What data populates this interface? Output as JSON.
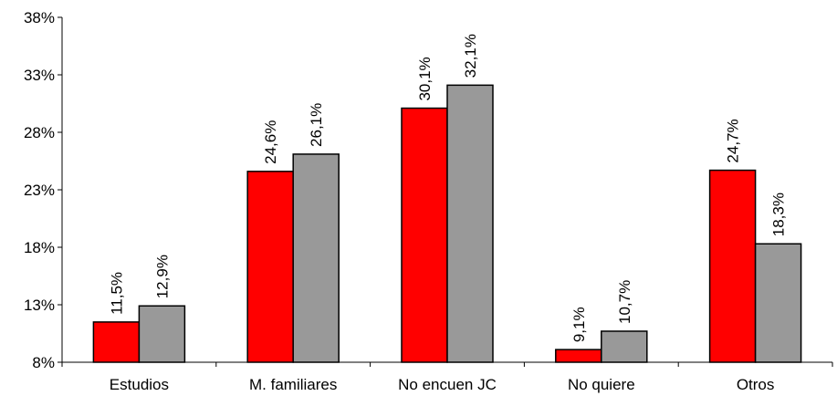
{
  "chart_data": {
    "type": "bar",
    "categories": [
      "Estudios",
      "M. familiares",
      "No encuen JC",
      "No quiere",
      "Otros"
    ],
    "series": [
      {
        "values": [
          11.5,
          24.6,
          30.1,
          9.1,
          24.7
        ],
        "labels": [
          "11,5%",
          "24,6%",
          "30,1%",
          "9,1%",
          "24,7%"
        ],
        "color": "#ff0000"
      },
      {
        "values": [
          12.9,
          26.1,
          32.1,
          10.7,
          18.3
        ],
        "labels": [
          "12,9%",
          "26,1%",
          "32,1%",
          "10,7%",
          "18,3%"
        ],
        "color": "#999999"
      }
    ],
    "ylim": [
      8,
      38
    ],
    "yticks": [
      8,
      13,
      18,
      23,
      28,
      33,
      38
    ],
    "ytick_labels": [
      "8%",
      "13%",
      "18%",
      "23%",
      "28%",
      "33%",
      "38%"
    ],
    "grid": false,
    "title": "",
    "xlabel": "",
    "ylabel": ""
  }
}
